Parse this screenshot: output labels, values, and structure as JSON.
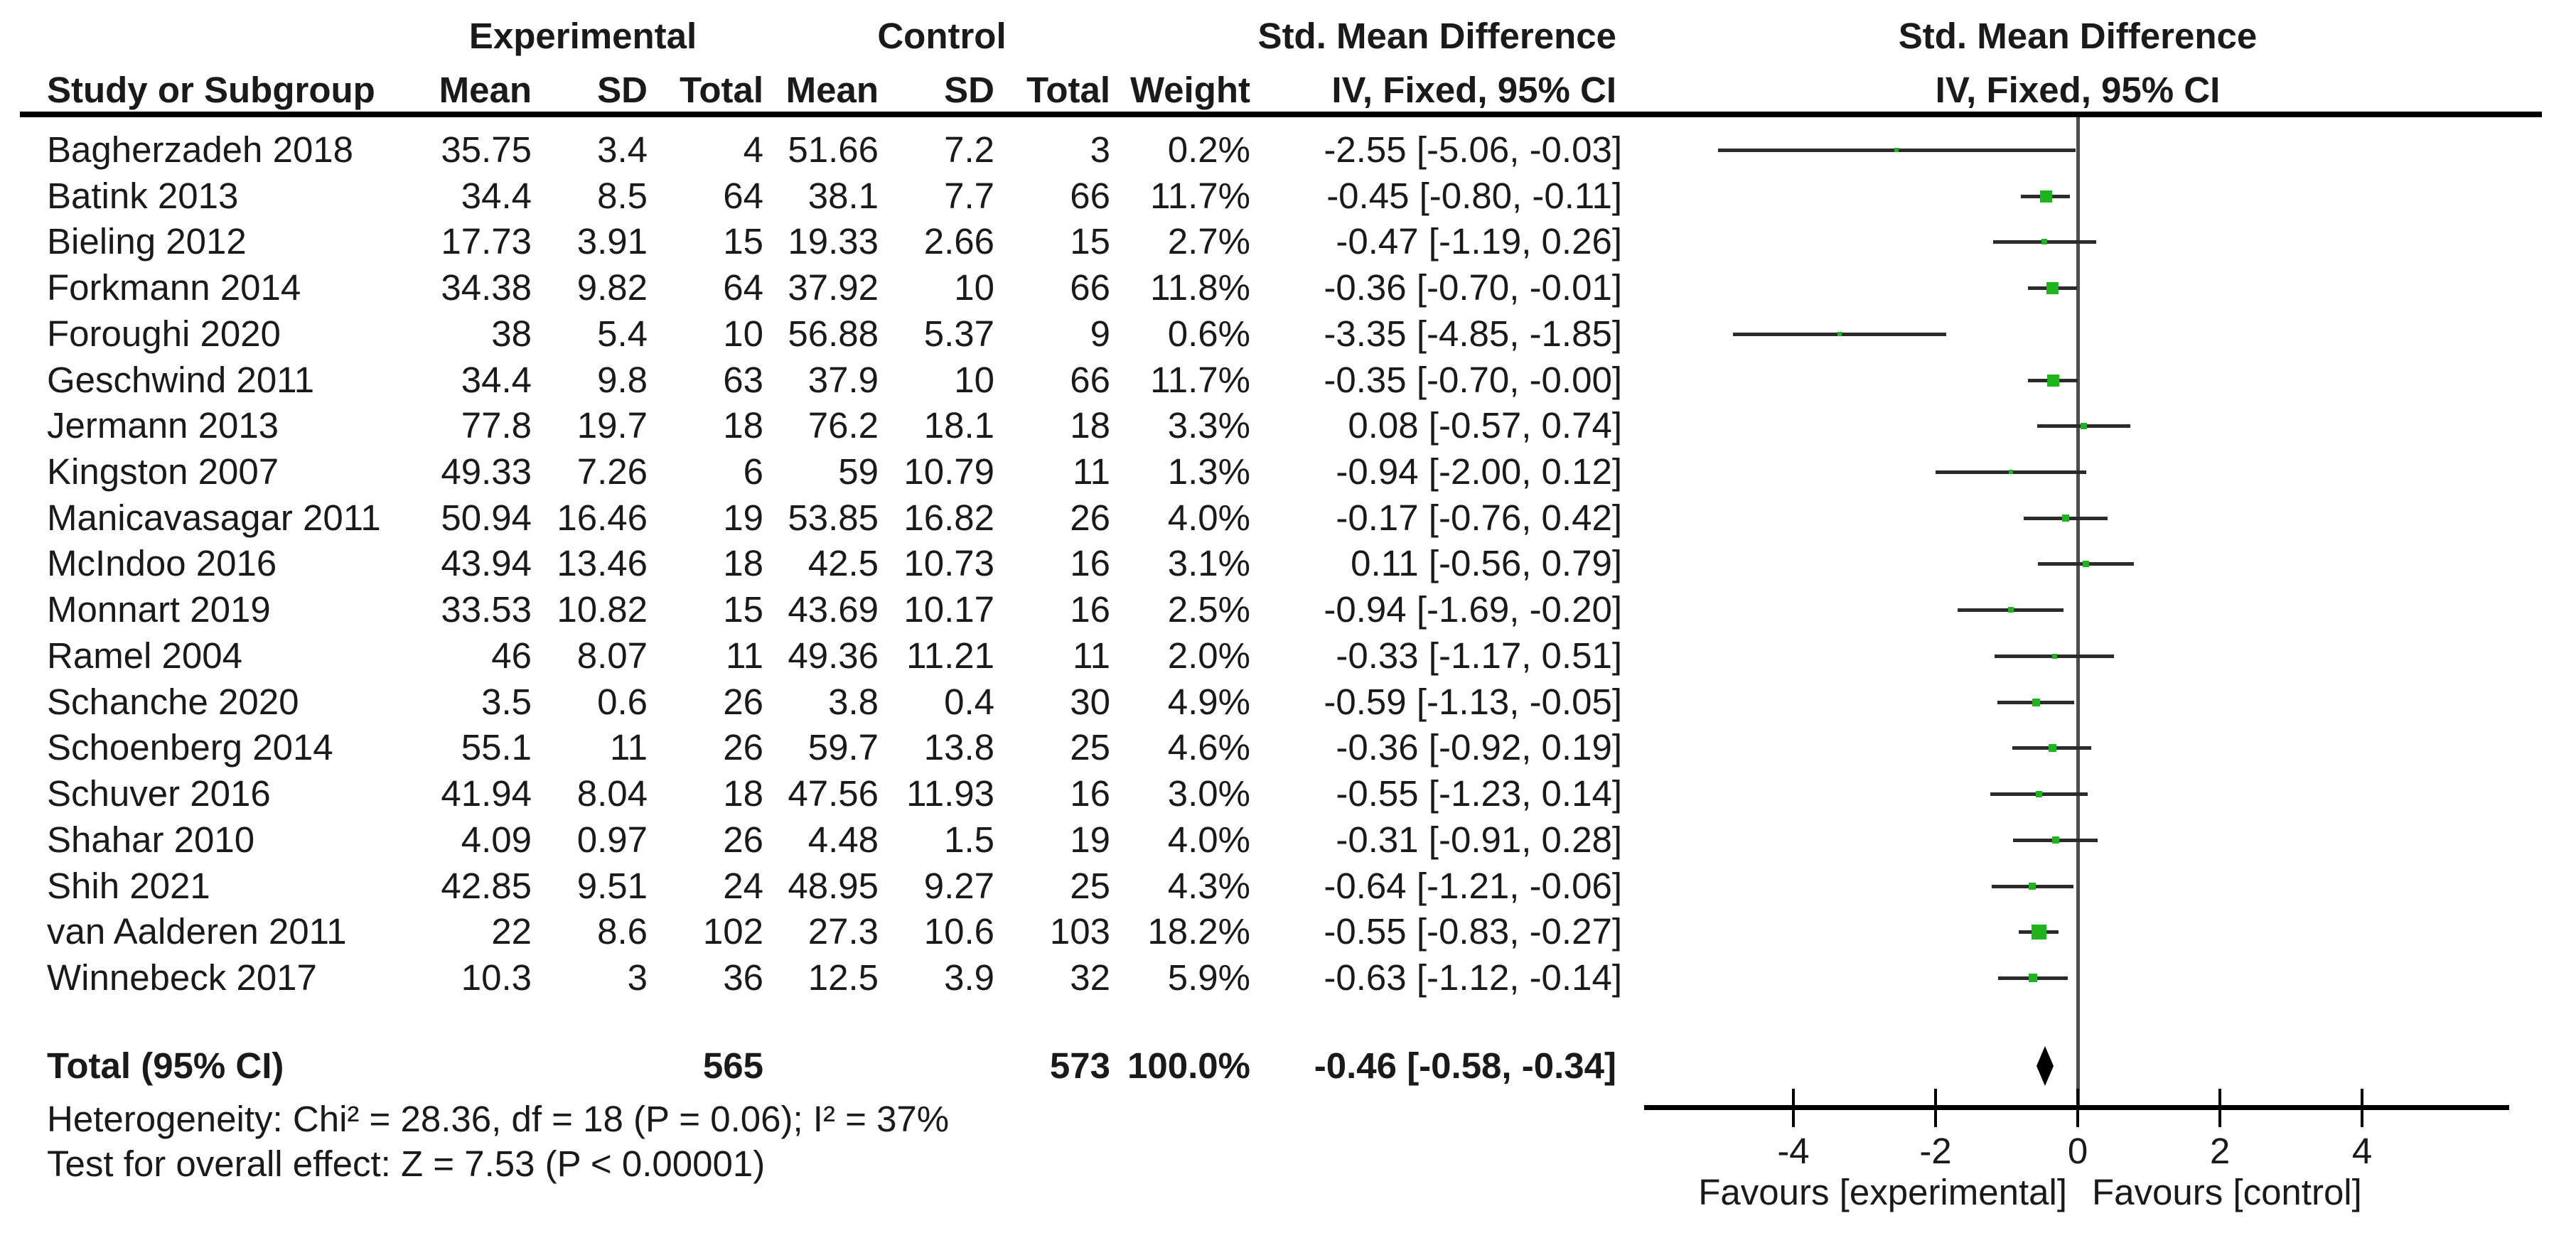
{
  "colors": {
    "marker": "#1eb41e",
    "ci_line": "#2b2b2b",
    "zero_line": "#4d4d4d",
    "axis": "#000000",
    "diamond": "#000000"
  },
  "header": {
    "study_col": "Study or Subgroup",
    "group1": "Experimental",
    "group2": "Control",
    "mean": "Mean",
    "sd": "SD",
    "total": "Total",
    "weight": "Weight",
    "effect_title": "Std. Mean Difference",
    "effect_sub": "IV, Fixed, 95% CI",
    "graph_title": "Std. Mean Difference",
    "graph_sub": "IV, Fixed, 95% CI"
  },
  "chart_data": {
    "type": "forest",
    "effect_measure": "Std. Mean Difference",
    "model": "IV, Fixed, 95% CI",
    "axis": {
      "min": -6.1,
      "max": 6.05,
      "ticks": [
        "-4",
        "-2",
        "0",
        "2",
        "4"
      ],
      "tick_values": [
        -4,
        -2,
        0,
        2,
        4
      ],
      "label_left": "Favours [experimental]",
      "label_right": "Favours [control]"
    },
    "studies": [
      {
        "name": "Bagherzadeh 2018",
        "mean1": "35.75",
        "sd1": "3.4",
        "n1": "4",
        "mean2": "51.66",
        "sd2": "7.2",
        "n2": "3",
        "weight": "0.2%",
        "ci_text": "-2.55 [-5.06, -0.03]",
        "est": -2.55,
        "lo": -5.06,
        "hi": -0.03,
        "w": 0.2
      },
      {
        "name": "Batink 2013",
        "mean1": "34.4",
        "sd1": "8.5",
        "n1": "64",
        "mean2": "38.1",
        "sd2": "7.7",
        "n2": "66",
        "weight": "11.7%",
        "ci_text": "-0.45 [-0.80, -0.11]",
        "est": -0.45,
        "lo": -0.8,
        "hi": -0.11,
        "w": 11.7
      },
      {
        "name": "Bieling 2012",
        "mean1": "17.73",
        "sd1": "3.91",
        "n1": "15",
        "mean2": "19.33",
        "sd2": "2.66",
        "n2": "15",
        "weight": "2.7%",
        "ci_text": "-0.47 [-1.19, 0.26]",
        "est": -0.47,
        "lo": -1.19,
        "hi": 0.26,
        "w": 2.7
      },
      {
        "name": "Forkmann 2014",
        "mean1": "34.38",
        "sd1": "9.82",
        "n1": "64",
        "mean2": "37.92",
        "sd2": "10",
        "n2": "66",
        "weight": "11.8%",
        "ci_text": "-0.36 [-0.70, -0.01]",
        "est": -0.36,
        "lo": -0.7,
        "hi": -0.01,
        "w": 11.8
      },
      {
        "name": "Foroughi 2020",
        "mean1": "38",
        "sd1": "5.4",
        "n1": "10",
        "mean2": "56.88",
        "sd2": "5.37",
        "n2": "9",
        "weight": "0.6%",
        "ci_text": "-3.35 [-4.85, -1.85]",
        "est": -3.35,
        "lo": -4.85,
        "hi": -1.85,
        "w": 0.6
      },
      {
        "name": "Geschwind 2011",
        "mean1": "34.4",
        "sd1": "9.8",
        "n1": "63",
        "mean2": "37.9",
        "sd2": "10",
        "n2": "66",
        "weight": "11.7%",
        "ci_text": "-0.35 [-0.70, -0.00]",
        "est": -0.35,
        "lo": -0.7,
        "hi": 0.0,
        "w": 11.7
      },
      {
        "name": "Jermann 2013",
        "mean1": "77.8",
        "sd1": "19.7",
        "n1": "18",
        "mean2": "76.2",
        "sd2": "18.1",
        "n2": "18",
        "weight": "3.3%",
        "ci_text": "0.08 [-0.57, 0.74]",
        "est": 0.08,
        "lo": -0.57,
        "hi": 0.74,
        "w": 3.3
      },
      {
        "name": "Kingston 2007",
        "mean1": "49.33",
        "sd1": "7.26",
        "n1": "6",
        "mean2": "59",
        "sd2": "10.79",
        "n2": "11",
        "weight": "1.3%",
        "ci_text": "-0.94 [-2.00, 0.12]",
        "est": -0.94,
        "lo": -2.0,
        "hi": 0.12,
        "w": 1.3
      },
      {
        "name": "Manicavasagar 2011",
        "mean1": "50.94",
        "sd1": "16.46",
        "n1": "19",
        "mean2": "53.85",
        "sd2": "16.82",
        "n2": "26",
        "weight": "4.0%",
        "ci_text": "-0.17 [-0.76, 0.42]",
        "est": -0.17,
        "lo": -0.76,
        "hi": 0.42,
        "w": 4.0
      },
      {
        "name": "McIndoo 2016",
        "mean1": "43.94",
        "sd1": "13.46",
        "n1": "18",
        "mean2": "42.5",
        "sd2": "10.73",
        "n2": "16",
        "weight": "3.1%",
        "ci_text": "0.11 [-0.56, 0.79]",
        "est": 0.11,
        "lo": -0.56,
        "hi": 0.79,
        "w": 3.1
      },
      {
        "name": "Monnart 2019",
        "mean1": "33.53",
        "sd1": "10.82",
        "n1": "15",
        "mean2": "43.69",
        "sd2": "10.17",
        "n2": "16",
        "weight": "2.5%",
        "ci_text": "-0.94 [-1.69, -0.20]",
        "est": -0.94,
        "lo": -1.69,
        "hi": -0.2,
        "w": 2.5
      },
      {
        "name": "Ramel 2004",
        "mean1": "46",
        "sd1": "8.07",
        "n1": "11",
        "mean2": "49.36",
        "sd2": "11.21",
        "n2": "11",
        "weight": "2.0%",
        "ci_text": "-0.33 [-1.17, 0.51]",
        "est": -0.33,
        "lo": -1.17,
        "hi": 0.51,
        "w": 2.0
      },
      {
        "name": "Schanche 2020",
        "mean1": "3.5",
        "sd1": "0.6",
        "n1": "26",
        "mean2": "3.8",
        "sd2": "0.4",
        "n2": "30",
        "weight": "4.9%",
        "ci_text": "-0.59 [-1.13, -0.05]",
        "est": -0.59,
        "lo": -1.13,
        "hi": -0.05,
        "w": 4.9
      },
      {
        "name": "Schoenberg 2014",
        "mean1": "55.1",
        "sd1": "11",
        "n1": "26",
        "mean2": "59.7",
        "sd2": "13.8",
        "n2": "25",
        "weight": "4.6%",
        "ci_text": "-0.36 [-0.92, 0.19]",
        "est": -0.36,
        "lo": -0.92,
        "hi": 0.19,
        "w": 4.6
      },
      {
        "name": "Schuver 2016",
        "mean1": "41.94",
        "sd1": "8.04",
        "n1": "18",
        "mean2": "47.56",
        "sd2": "11.93",
        "n2": "16",
        "weight": "3.0%",
        "ci_text": "-0.55 [-1.23, 0.14]",
        "est": -0.55,
        "lo": -1.23,
        "hi": 0.14,
        "w": 3.0
      },
      {
        "name": "Shahar 2010",
        "mean1": "4.09",
        "sd1": "0.97",
        "n1": "26",
        "mean2": "4.48",
        "sd2": "1.5",
        "n2": "19",
        "weight": "4.0%",
        "ci_text": "-0.31 [-0.91, 0.28]",
        "est": -0.31,
        "lo": -0.91,
        "hi": 0.28,
        "w": 4.0
      },
      {
        "name": "Shih 2021",
        "mean1": "42.85",
        "sd1": "9.51",
        "n1": "24",
        "mean2": "48.95",
        "sd2": "9.27",
        "n2": "25",
        "weight": "4.3%",
        "ci_text": "-0.64 [-1.21, -0.06]",
        "est": -0.64,
        "lo": -1.21,
        "hi": -0.06,
        "w": 4.3
      },
      {
        "name": "van Aalderen 2011",
        "mean1": "22",
        "sd1": "8.6",
        "n1": "102",
        "mean2": "27.3",
        "sd2": "10.6",
        "n2": "103",
        "weight": "18.2%",
        "ci_text": "-0.55 [-0.83, -0.27]",
        "est": -0.55,
        "lo": -0.83,
        "hi": -0.27,
        "w": 18.2
      },
      {
        "name": "Winnebeck 2017",
        "mean1": "10.3",
        "sd1": "3",
        "n1": "36",
        "mean2": "12.5",
        "sd2": "3.9",
        "n2": "32",
        "weight": "5.9%",
        "ci_text": "-0.63 [-1.12, -0.14]",
        "est": -0.63,
        "lo": -1.12,
        "hi": -0.14,
        "w": 5.9
      }
    ],
    "total": {
      "label": "Total (95% CI)",
      "n1": "565",
      "n2": "573",
      "weight": "100.0%",
      "ci_text": "-0.46 [-0.58, -0.34]",
      "est": -0.46,
      "lo": -0.58,
      "hi": -0.34
    },
    "heterogeneity": "Heterogeneity: Chi² = 28.36, df = 18 (P = 0.06); I² = 37%",
    "overall_effect": "Test for overall effect: Z = 7.53 (P < 0.00001)"
  }
}
